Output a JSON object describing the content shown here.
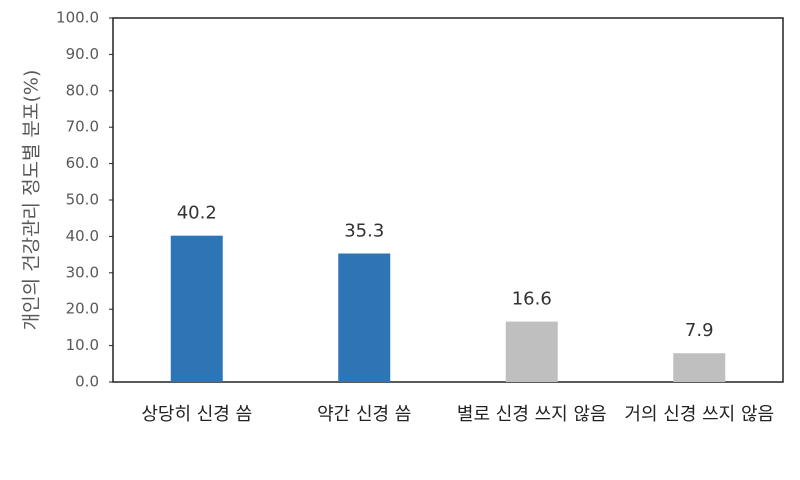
{
  "chart_data": {
    "type": "bar",
    "y_label": "개인의 건강관리 정도별 분포(%)",
    "categories": [
      "상당히 신경 씀",
      "약간 신경 씀",
      "별로 신경 쓰지 않음",
      "거의 신경 쓰지 않음"
    ],
    "values": [
      40.2,
      35.3,
      16.6,
      7.9
    ],
    "colors": [
      "#2e75b6",
      "#2e75b6",
      "#bfbfbf",
      "#bfbfbf"
    ],
    "ylim": [
      0,
      100
    ],
    "yticks": [
      {
        "value": 0,
        "label": "0.0"
      },
      {
        "value": 10,
        "label": "10.0"
      },
      {
        "value": 20,
        "label": "20.0"
      },
      {
        "value": 30,
        "label": "30.0"
      },
      {
        "value": 40,
        "label": "40.0"
      },
      {
        "value": 50,
        "label": "50.0"
      },
      {
        "value": 60,
        "label": "60.0"
      },
      {
        "value": 70,
        "label": "70.0"
      },
      {
        "value": 80,
        "label": "80.0"
      },
      {
        "value": 90,
        "label": "90.0"
      },
      {
        "value": 100,
        "label": "100.0"
      }
    ],
    "grid": false
  }
}
